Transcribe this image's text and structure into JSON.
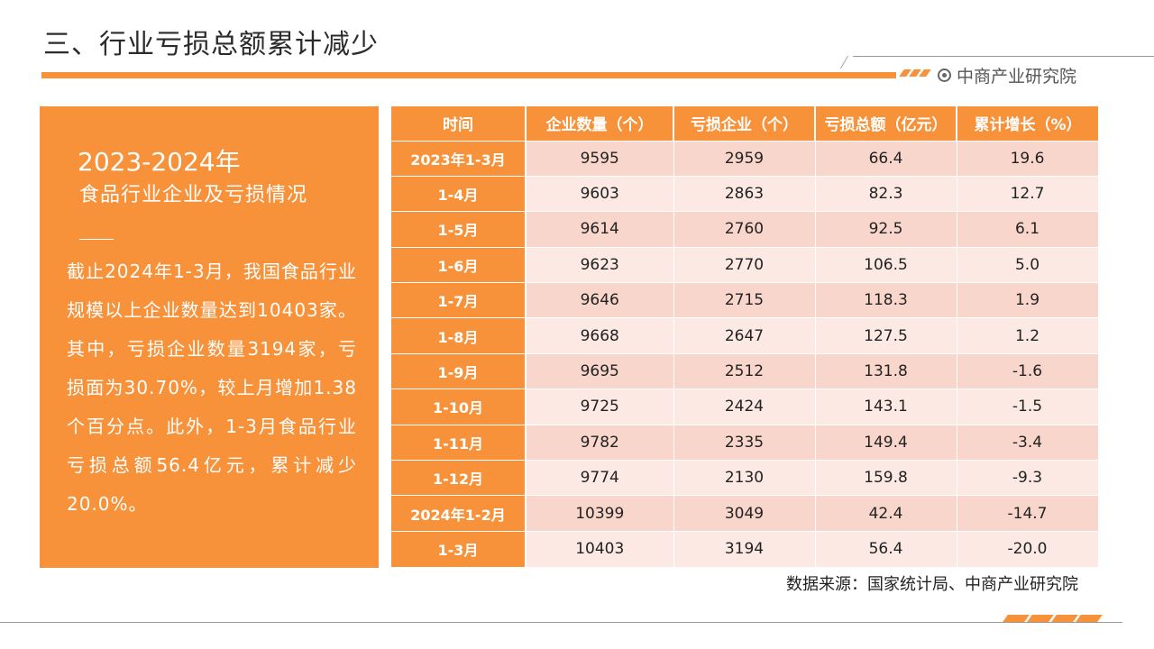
{
  "title": "三、行业亏损总额累计减少",
  "brand": "中商产业研究院",
  "left_panel": {
    "year": "2023-2024年",
    "subtitle": "食品行业企业及亏损情况",
    "body": "截止2024年1-3月，我国食品行业规模以上企业数量达到10403家。其中，亏损企业数量3194家，亏损面为30.70%，较上月增加1.38个百分点。此外，1-3月食品行业亏损总额56.4亿元，累计减少20.0%。"
  },
  "table": {
    "headers": [
      "时间",
      "企业数量（个）",
      "亏损企业（个）",
      "亏损总额（亿元）",
      "累计增长（%）"
    ],
    "rows": [
      [
        "2023年1-3月",
        "9595",
        "2959",
        "66.4",
        "19.6"
      ],
      [
        "1-4月",
        "9603",
        "2863",
        "82.3",
        "12.7"
      ],
      [
        "1-5月",
        "9614",
        "2760",
        "92.5",
        "6.1"
      ],
      [
        "1-6月",
        "9623",
        "2770",
        "106.5",
        "5.0"
      ],
      [
        "1-7月",
        "9646",
        "2715",
        "118.3",
        "1.9"
      ],
      [
        "1-8月",
        "9668",
        "2647",
        "127.5",
        "1.2"
      ],
      [
        "1-9月",
        "9695",
        "2512",
        "131.8",
        "-1.6"
      ],
      [
        "1-10月",
        "9725",
        "2424",
        "143.1",
        "-1.5"
      ],
      [
        "1-11月",
        "9782",
        "2335",
        "149.4",
        "-3.4"
      ],
      [
        "1-12月",
        "9774",
        "2130",
        "159.8",
        "-9.3"
      ],
      [
        "2024年1-2月",
        "10399",
        "3049",
        "42.4",
        "-14.7"
      ],
      [
        "1-3月",
        "10403",
        "3194",
        "56.4",
        "-20.0"
      ]
    ]
  },
  "source": "数据来源：国家统计局、中商产业研究院",
  "colors": {
    "accent": "#f7923a",
    "row_dark": "#f9d6cb",
    "row_light": "#fce9e3"
  }
}
